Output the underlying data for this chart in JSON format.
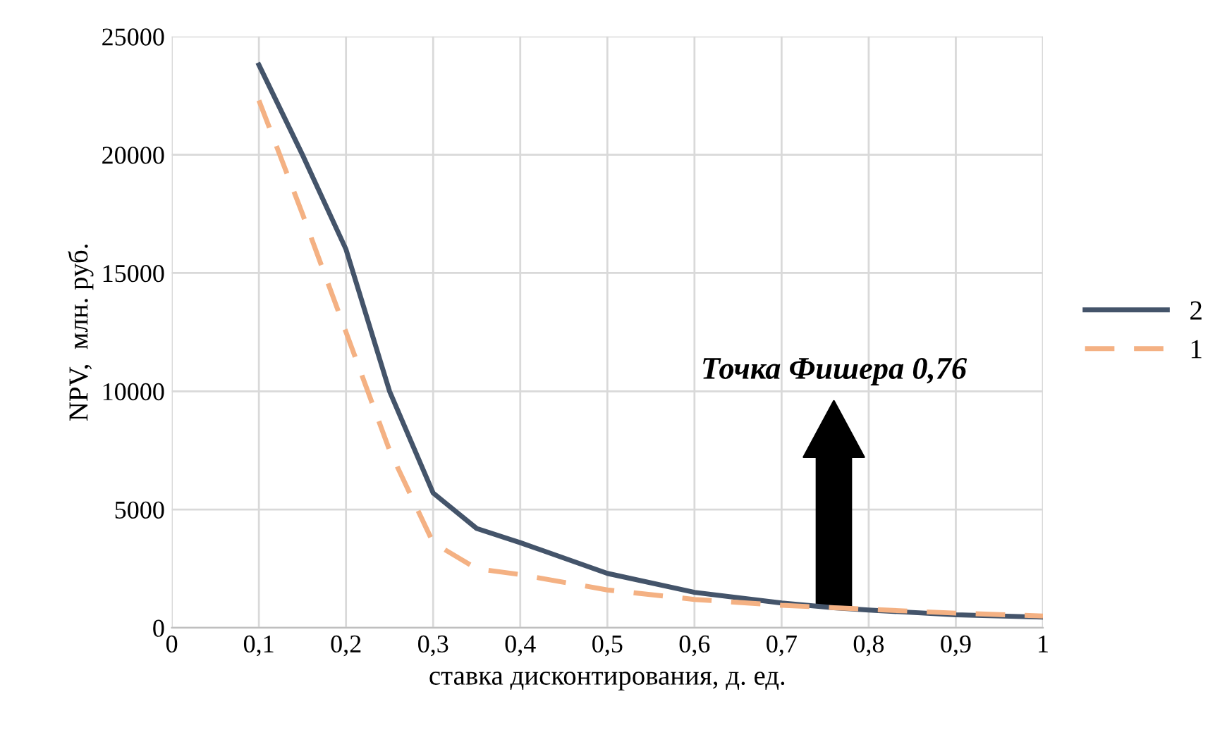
{
  "chart_data": {
    "type": "line",
    "xlabel": "ставка дисконтирования, д. ед.",
    "ylabel": "NPV,  млн. руб.",
    "x": [
      0.1,
      0.15,
      0.2,
      0.25,
      0.3,
      0.35,
      0.4,
      0.5,
      0.6,
      0.7,
      0.76,
      0.8,
      0.9,
      1.0
    ],
    "series": [
      {
        "name": "2",
        "color": "#44546a",
        "line_style": "solid",
        "values": [
          23800,
          20000,
          16000,
          10000,
          5700,
          4200,
          3600,
          2300,
          1500,
          1050,
          850,
          750,
          550,
          450
        ]
      },
      {
        "name": "1",
        "color": "#f4b183",
        "line_style": "dashed",
        "values": [
          22300,
          17500,
          12500,
          7500,
          3600,
          2500,
          2250,
          1600,
          1200,
          950,
          850,
          780,
          620,
          500
        ]
      }
    ],
    "xlim": [
      0,
      1
    ],
    "ylim": [
      0,
      25000
    ],
    "xticks": [
      0,
      {
        "value": 0.1,
        "label": "0,1"
      },
      {
        "value": 0.2,
        "label": "0,2"
      },
      {
        "value": 0.3,
        "label": "0,3"
      },
      {
        "value": 0.4,
        "label": "0,4"
      },
      {
        "value": 0.5,
        "label": "0,5"
      },
      {
        "value": 0.6,
        "label": "0,6"
      },
      {
        "value": 0.7,
        "label": "0,7"
      },
      {
        "value": 0.8,
        "label": "0,8"
      },
      {
        "value": 0.9,
        "label": "0,9"
      },
      1
    ],
    "yticks": [
      0,
      5000,
      10000,
      15000,
      20000,
      25000
    ],
    "grid": true,
    "legend": "right",
    "marker": "none",
    "annotations": [
      "Точка Фишера 0,76"
    ]
  }
}
